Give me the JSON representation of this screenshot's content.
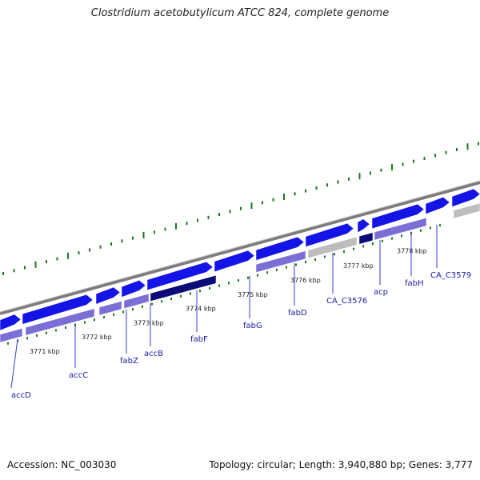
{
  "title": "Clostridium acetobutylicum ATCC 824, complete genome",
  "footer": {
    "accession": "Accession: NC_003030",
    "summary": "Topology: circular; Length: 3,940,880 bp; Genes: 3,777"
  },
  "colors": {
    "cds_forward": "#1414e6",
    "cds_highlight": "#0a0a78",
    "cds_lower": "#7b6fd6",
    "cds_other": "#bdbdbd",
    "backbone": "#8a8a8a",
    "gc_ticks": "#1a7a1a",
    "label": "#1a1aa6",
    "leader": "#3a3ad0"
  },
  "kbp_labels": [
    "3771 kbp",
    "3772 kbp",
    "3773 kbp",
    "3774 kbp",
    "3775 kbp",
    "3776 kbp",
    "3777 kbp",
    "3778 kbp"
  ],
  "genes": [
    "accD",
    "accC",
    "fabZ",
    "accB",
    "fabF",
    "fabG",
    "fabD",
    "CA_C3576",
    "acp",
    "fabH",
    "CA_C3579"
  ]
}
